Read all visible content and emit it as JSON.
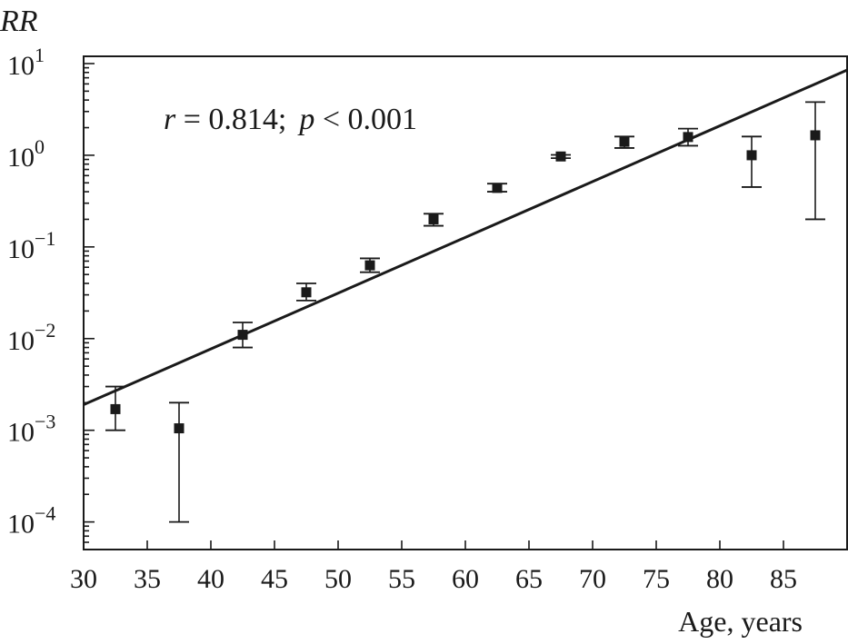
{
  "chart_data": {
    "type": "scatter",
    "ylabel": "RR",
    "xlabel": "Age, years",
    "annotation": {
      "r_symbol": "r",
      "r_text": " = 0.814;",
      "p_symbol": "p",
      "p_text": " < 0.001"
    },
    "xlim": [
      30,
      90
    ],
    "ylim": [
      5e-05,
      12
    ],
    "yscale": "log",
    "x_ticks": [
      30,
      35,
      40,
      45,
      50,
      55,
      60,
      65,
      70,
      75,
      80,
      85
    ],
    "y_ticks": [
      {
        "value": 0.0001,
        "base": "10",
        "exp": "−4"
      },
      {
        "value": 0.001,
        "base": "10",
        "exp": "−3"
      },
      {
        "value": 0.01,
        "base": "10",
        "exp": "−2"
      },
      {
        "value": 0.1,
        "base": "10",
        "exp": "−1"
      },
      {
        "value": 1,
        "base": "10",
        "exp": "0"
      },
      {
        "value": 10,
        "base": "10",
        "exp": "1"
      }
    ],
    "points": [
      {
        "x": 32.5,
        "y": 0.0017,
        "lo": 0.001,
        "hi": 0.003
      },
      {
        "x": 37.5,
        "y": 0.00105,
        "lo": 0.0001,
        "hi": 0.002
      },
      {
        "x": 42.5,
        "y": 0.011,
        "lo": 0.008,
        "hi": 0.015
      },
      {
        "x": 47.5,
        "y": 0.032,
        "lo": 0.026,
        "hi": 0.04
      },
      {
        "x": 52.5,
        "y": 0.063,
        "lo": 0.053,
        "hi": 0.075
      },
      {
        "x": 57.5,
        "y": 0.2,
        "lo": 0.17,
        "hi": 0.23
      },
      {
        "x": 62.5,
        "y": 0.44,
        "lo": 0.4,
        "hi": 0.49
      },
      {
        "x": 67.5,
        "y": 0.97,
        "lo": 0.93,
        "hi": 1.01
      },
      {
        "x": 72.5,
        "y": 1.4,
        "lo": 1.2,
        "hi": 1.6
      },
      {
        "x": 77.5,
        "y": 1.58,
        "lo": 1.27,
        "hi": 1.95
      },
      {
        "x": 82.5,
        "y": 1.0,
        "lo": 0.45,
        "hi": 1.6
      },
      {
        "x": 87.5,
        "y": 1.65,
        "lo": 0.2,
        "hi": 3.8
      }
    ],
    "fit_line": {
      "x": [
        30,
        90
      ],
      "y": [
        0.0019,
        8.5
      ]
    },
    "grid": false,
    "legend": "none"
  }
}
